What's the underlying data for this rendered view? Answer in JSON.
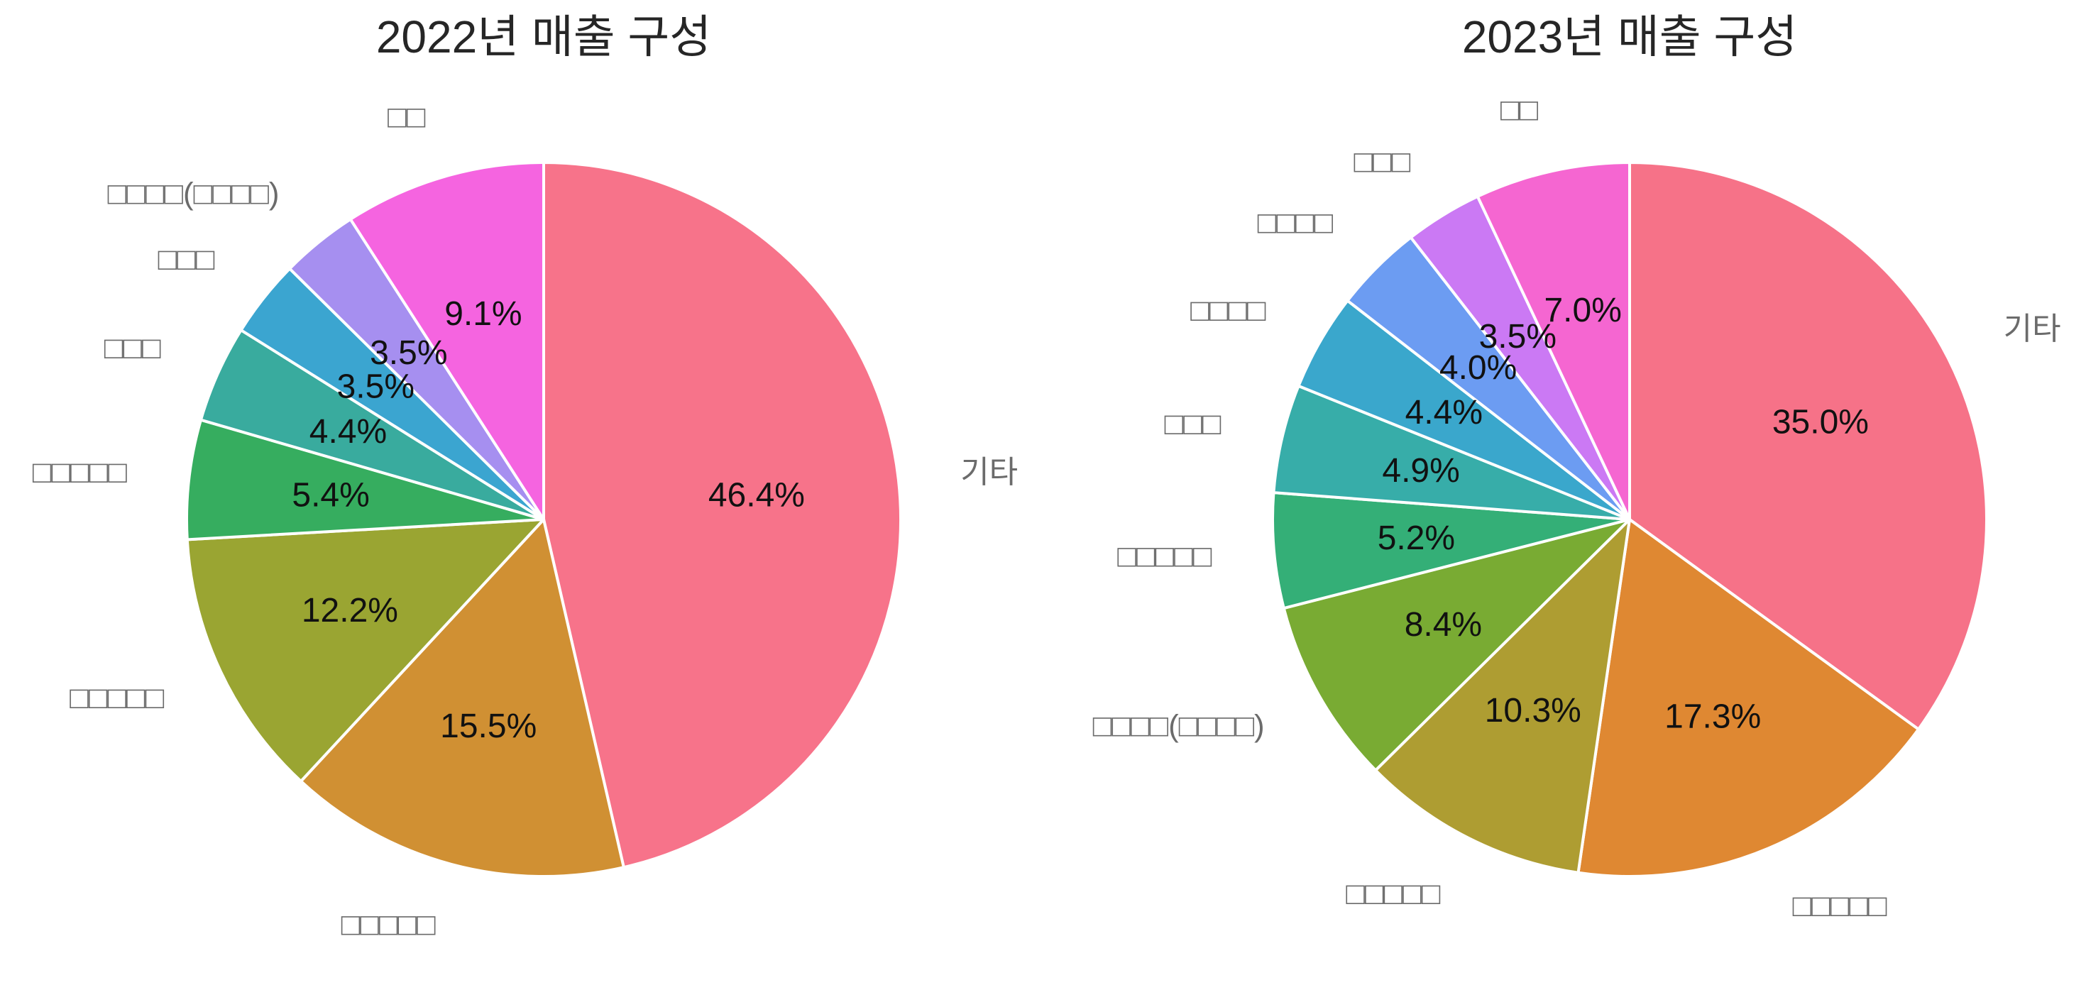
{
  "colors": {
    "palette": [
      "#f77189",
      "#d58c32",
      "#a4a031",
      "#50b131",
      "#36ada4",
      "#3ba3ec",
      "#bb83f4",
      "#f564d4"
    ],
    "slice_edge": "#ffffff"
  },
  "chart_data": [
    {
      "type": "pie",
      "title": "2022년 매출 구성",
      "start_angle": 90,
      "direction": "clockwise",
      "categories": [
        "기타",
        "□□□□□",
        "□□□□□",
        "□□□□□",
        "□□□",
        "□□□",
        "□□□□(□□□□)",
        "□□"
      ],
      "values": [
        46.4,
        15.5,
        12.2,
        5.4,
        4.4,
        3.5,
        3.5,
        9.1
      ],
      "labels": [
        "46.4%",
        "15.5%",
        "12.2%",
        "5.4%",
        "4.4%",
        "3.5%",
        "3.5%",
        "9.1%"
      ],
      "colors": [
        "#f7738a",
        "#d09033",
        "#9aa532",
        "#36ad5f",
        "#39ab9e",
        "#3ba5d0",
        "#a68ff0",
        "#f564e0"
      ]
    },
    {
      "type": "pie",
      "title": "2023년 매출 구성",
      "start_angle": 90,
      "direction": "clockwise",
      "categories": [
        "기타",
        "□□□□□",
        "□□□□□",
        "□□□□(□□□□)",
        "□□□□□",
        "□□□",
        "□□□□",
        "□□□□",
        "□□□",
        "□□"
      ],
      "values": [
        35.0,
        17.3,
        10.3,
        8.4,
        5.2,
        4.9,
        4.4,
        4.0,
        3.5,
        7.0
      ],
      "labels": [
        "35.0%",
        "17.3%",
        "10.3%",
        "8.4%",
        "5.2%",
        "4.9%",
        "4.4%",
        "4.0%",
        "3.5%",
        "7.0%"
      ],
      "colors": [
        "#f67288",
        "#df8832",
        "#ae9d32",
        "#79ab33",
        "#34af77",
        "#37ada9",
        "#3aa7cc",
        "#6c9cf2",
        "#cb79f4",
        "#f566d1"
      ]
    }
  ]
}
